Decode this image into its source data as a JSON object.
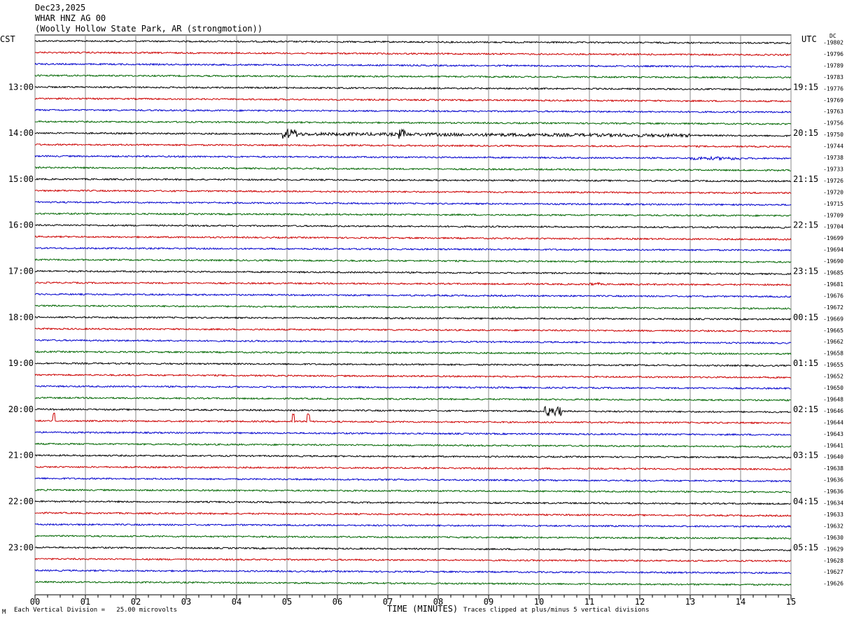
{
  "header": {
    "date": "Dec23,2025",
    "station": "WHAR HNZ AG 00",
    "location": "(Woolly Hollow State Park, AR (strongmotion))"
  },
  "left_zone": "CST",
  "right_zone": "UTC",
  "dc_label": "DC",
  "xlabel": "TIME (MINUTES)",
  "footer": {
    "scale": "Each Vertical Division =   25.00 microvolts",
    "clip": "Traces clipped at plus/minus 5 vertical divisions",
    "corner": "M"
  },
  "colors": {
    "black": "#000000",
    "red": "#cc0000",
    "blue": "#0000cc",
    "green": "#006600"
  },
  "chart_data": {
    "type": "line",
    "x_ticks": [
      "00",
      "01",
      "02",
      "03",
      "04",
      "05",
      "06",
      "07",
      "08",
      "09",
      "10",
      "11",
      "12",
      "13",
      "14",
      "15"
    ],
    "xlim": [
      0,
      15
    ],
    "grid": "vertical lines every minute",
    "left_time_labels": [
      "13:00",
      "14:00",
      "15:00",
      "16:00",
      "17:00",
      "18:00",
      "19:00",
      "20:00",
      "21:00",
      "22:00",
      "23:00"
    ],
    "right_time_labels": [
      "19:15",
      "20:15",
      "21:15",
      "22:15",
      "23:15",
      "00:15",
      "01:15",
      "02:15",
      "03:15",
      "04:15",
      "05:15"
    ],
    "trace_color_cycle": [
      "black",
      "red",
      "blue",
      "green"
    ],
    "dc_offsets": [
      -19802,
      -19796,
      -19789,
      -19783,
      -19776,
      -19769,
      -19763,
      -19756,
      -19750,
      -19744,
      -19738,
      -19733,
      -19726,
      -19720,
      -19715,
      -19709,
      -19704,
      -19699,
      -19694,
      -19690,
      -19685,
      -19681,
      -19676,
      -19672,
      -19669,
      -19665,
      -19662,
      -19658,
      -19655,
      -19652,
      -19650,
      -19648,
      -19646,
      -19644,
      -19643,
      -19641,
      -19640,
      -19638,
      -19636,
      -19636,
      -19634,
      -19633,
      -19632,
      -19630,
      -19629,
      -19628,
      -19627,
      -19626
    ],
    "events": [
      {
        "trace": 8,
        "start_min": 4.9,
        "end_min": 5.2,
        "level": "high"
      },
      {
        "trace": 8,
        "start_min": 5.2,
        "end_min": 13.0,
        "level": "medium"
      },
      {
        "trace": 8,
        "start_min": 7.2,
        "end_min": 7.4,
        "level": "high"
      },
      {
        "trace": 10,
        "start_min": 13.0,
        "end_min": 14.0,
        "level": "medium"
      },
      {
        "trace": 21,
        "start_min": 11.0,
        "end_min": 11.2,
        "level": "medium"
      },
      {
        "trace": 32,
        "start_min": 10.1,
        "end_min": 10.45,
        "level": "high"
      },
      {
        "trace": 33,
        "start_min": 0.35,
        "end_min": 0.4,
        "level": "spike"
      },
      {
        "trace": 33,
        "start_min": 5.1,
        "end_min": 5.15,
        "level": "spike"
      },
      {
        "trace": 33,
        "start_min": 5.4,
        "end_min": 5.45,
        "level": "spike"
      }
    ]
  }
}
